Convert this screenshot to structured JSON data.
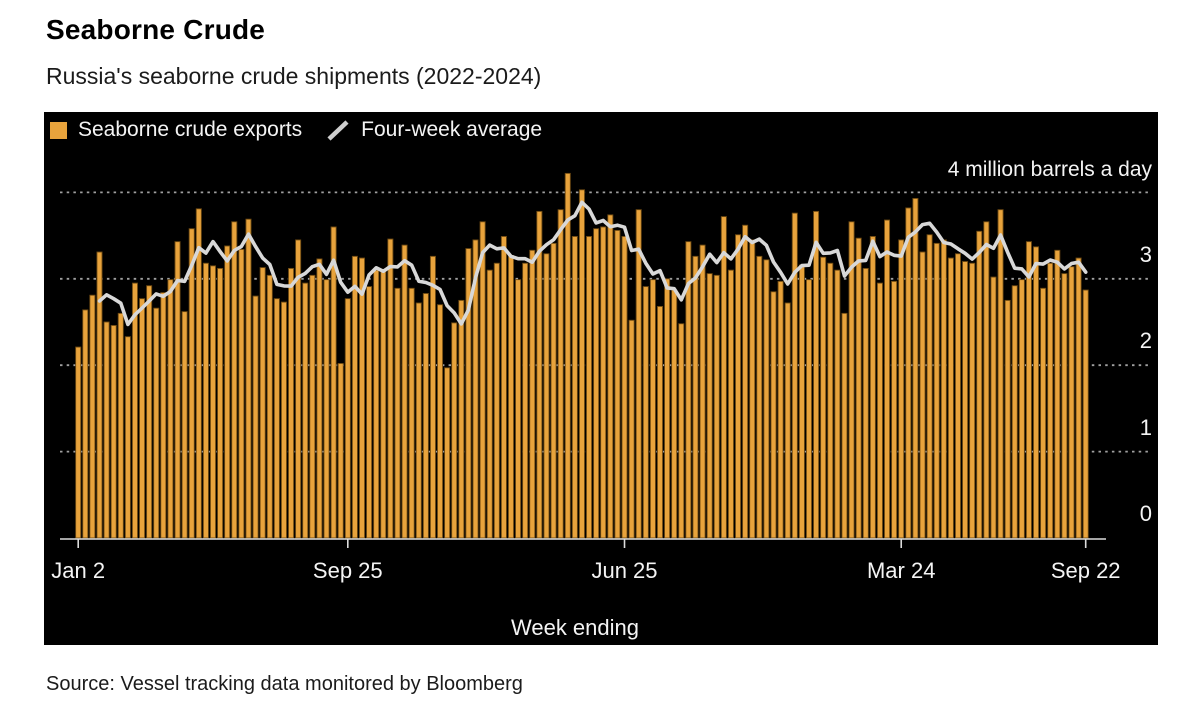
{
  "header": {
    "title": "Seaborne Crude",
    "subtitle": "Russia's seaborne crude shipments (2022-2024)"
  },
  "legend": {
    "items": [
      {
        "label": "Seaborne crude exports",
        "swatch": "square",
        "color": "#e8a33c"
      },
      {
        "label": "Four-week average",
        "swatch": "slash",
        "color": "#cfcfcf"
      }
    ]
  },
  "footer": {
    "source": "Source: Vessel tracking data monitored by Bloomberg"
  },
  "colors": {
    "panel_background": "#000000",
    "bar_fill": "#e8a33c",
    "bar_edge": "#6e4a12",
    "average_line": "#d8d8d8",
    "grid_line": "#a0a0a0",
    "axis_line": "#dcdcdc",
    "axis_text": "#f4f4f4"
  },
  "chart_data": {
    "type": "bar",
    "title": "Seaborne Crude",
    "subtitle": "Russia's seaborne crude shipments (2022-2024)",
    "annotation_top_right": "4 million barrels a day",
    "xlabel": "Week ending",
    "ylabel": "million barrels a day",
    "ylim": [
      0,
      4.35
    ],
    "grid": "dotted horizontal at 1, 2, 3, 4",
    "yticks_labeled": [
      3,
      2,
      1,
      0
    ],
    "grid_levels": [
      1,
      2,
      3,
      4
    ],
    "legend_position": "top-left",
    "x_axis_note": "143 consecutive weeks, week ending Jan 2 2022 through Sep 22 2024",
    "x_ticks": [
      {
        "label": "Jan 2",
        "index": 0
      },
      {
        "label": "Sep 25",
        "index": 38
      },
      {
        "label": "Jun 25",
        "index": 77
      },
      {
        "label": "Mar 24",
        "index": 116
      },
      {
        "label": "Sep 22",
        "index": 142
      }
    ],
    "series": [
      {
        "name": "Seaborne crude exports",
        "type": "bar",
        "values": [
          2.21,
          2.64,
          2.81,
          3.31,
          2.5,
          2.46,
          2.6,
          2.33,
          2.95,
          2.77,
          2.92,
          2.66,
          2.84,
          2.99,
          3.43,
          2.62,
          3.58,
          3.81,
          3.18,
          3.15,
          3.12,
          3.38,
          3.66,
          3.34,
          3.69,
          2.8,
          3.13,
          3.04,
          2.77,
          2.73,
          3.12,
          3.45,
          2.95,
          3.04,
          3.23,
          2.99,
          3.6,
          2.02,
          2.77,
          3.26,
          3.24,
          2.91,
          3.1,
          3.1,
          3.46,
          2.89,
          3.39,
          2.89,
          2.72,
          2.83,
          3.26,
          2.7,
          1.97,
          2.49,
          2.75,
          3.35,
          3.45,
          3.66,
          3.1,
          3.18,
          3.49,
          3.27,
          2.99,
          3.18,
          3.33,
          3.78,
          3.29,
          3.41,
          3.8,
          4.22,
          3.49,
          4.03,
          3.49,
          3.58,
          3.6,
          3.74,
          3.56,
          3.49,
          2.52,
          3.8,
          2.91,
          2.99,
          2.68,
          3.0,
          2.87,
          2.48,
          3.43,
          3.26,
          3.39,
          3.06,
          3.04,
          3.72,
          3.1,
          3.51,
          3.62,
          3.45,
          3.26,
          3.22,
          2.85,
          2.97,
          2.72,
          3.76,
          3.16,
          2.99,
          3.78,
          3.25,
          3.18,
          3.1,
          2.6,
          3.66,
          3.47,
          3.12,
          3.49,
          2.95,
          3.68,
          2.97,
          3.45,
          3.82,
          3.93,
          3.31,
          3.51,
          3.41,
          3.45,
          3.24,
          3.29,
          3.2,
          3.18,
          3.55,
          3.66,
          3.02,
          3.8,
          2.75,
          2.92,
          2.99,
          3.43,
          3.37,
          2.89,
          3.18,
          3.33,
          3.06,
          3.14,
          3.24,
          2.87
        ]
      },
      {
        "name": "Four-week average",
        "type": "line",
        "definition": "trailing 4-week mean of Seaborne crude exports"
      }
    ]
  }
}
